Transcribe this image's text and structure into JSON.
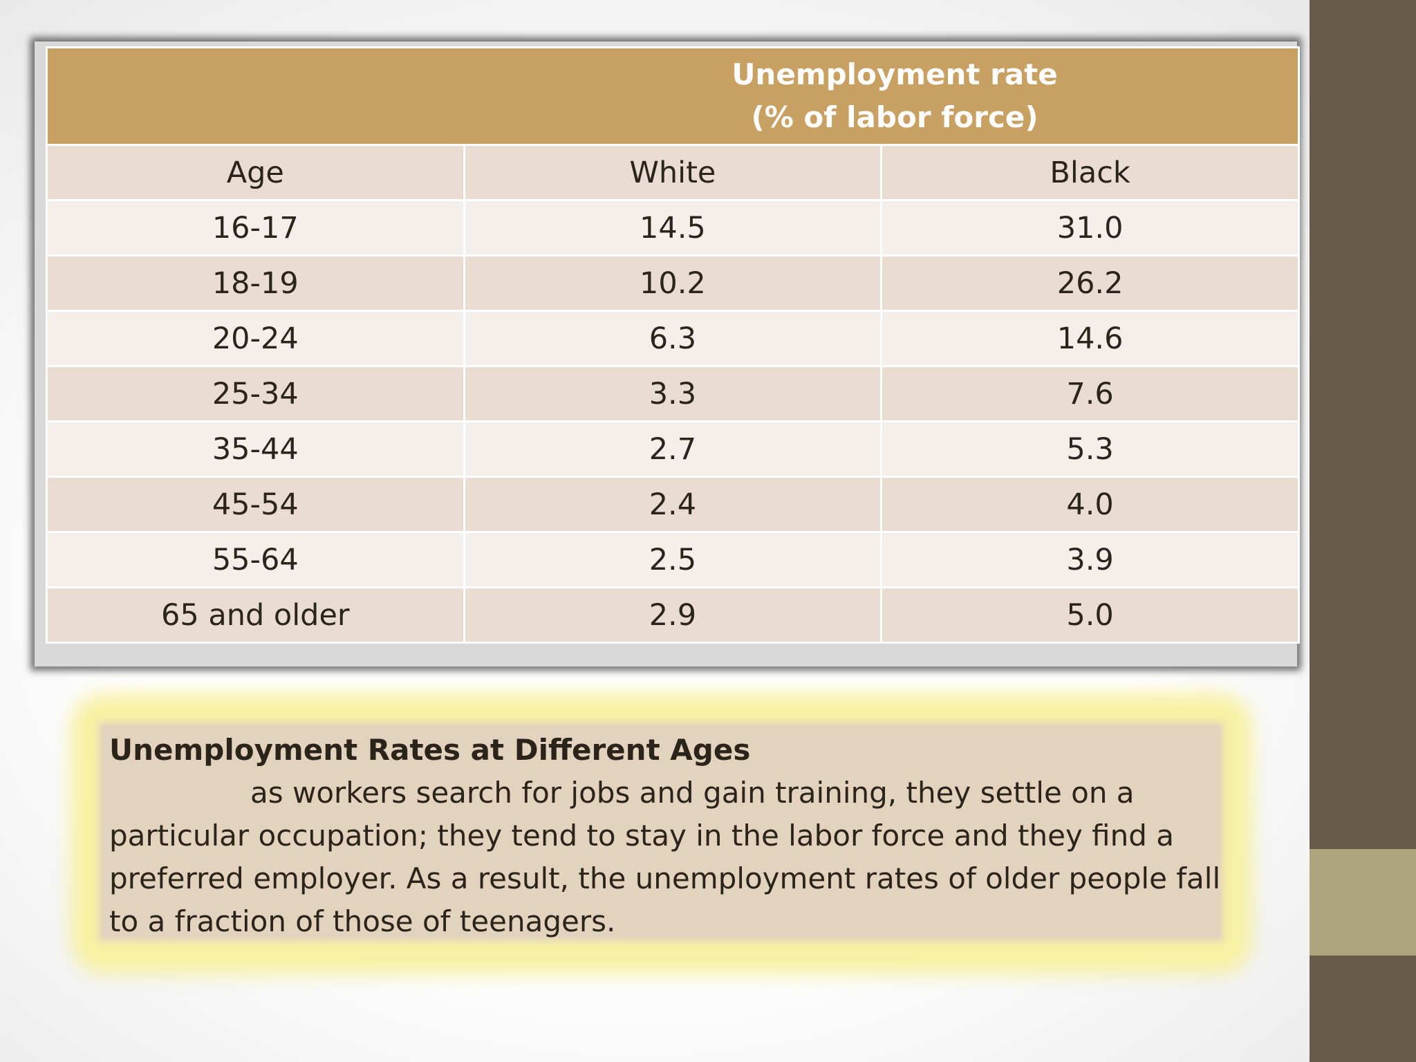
{
  "table": {
    "header_title_line1": "Unemployment rate",
    "header_title_line2": "(% of labor force)",
    "columns": [
      "Age",
      "White",
      "Black"
    ],
    "rows": [
      [
        "16-17",
        "14.5",
        "31.0"
      ],
      [
        "18-19",
        "10.2",
        "26.2"
      ],
      [
        "20-24",
        "6.3",
        "14.6"
      ],
      [
        "25-34",
        "3.3",
        "7.6"
      ],
      [
        "35-44",
        "2.7",
        "5.3"
      ],
      [
        "45-54",
        "2.4",
        "4.0"
      ],
      [
        "55-64",
        "2.5",
        "3.9"
      ],
      [
        "65 and older",
        "2.9",
        "5.0"
      ]
    ]
  },
  "caption": {
    "title": "Unemployment Rates at Different Ages",
    "body": "as workers search for jobs and gain training, they settle on a particular occupation; they tend to stay in the labor force and they find a preferred employer. As a result, the unemployment rates of older people fall to a fraction of those of teenagers."
  },
  "colors": {
    "header_bg": "#c8a061",
    "row_dark": "#e9ddd1",
    "row_light": "#f4efea",
    "side_band": "#675c47",
    "side_band_accent": "#aca580",
    "caption_bg": "#e3d2be",
    "caption_glow": "#f8f1a3"
  }
}
